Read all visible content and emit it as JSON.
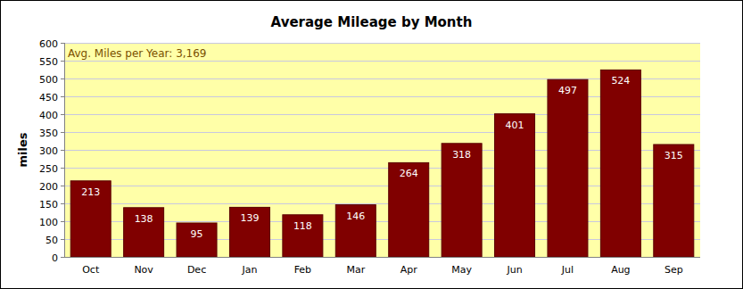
{
  "chart_data": {
    "type": "bar",
    "title": "Average Mileage by Month",
    "annotation": "Avg. Miles per Year: 3,169",
    "ylabel": "miles",
    "categories": [
      "Oct",
      "Nov",
      "Dec",
      "Jan",
      "Feb",
      "Mar",
      "Apr",
      "May",
      "Jun",
      "Jul",
      "Aug",
      "Sep"
    ],
    "values": [
      213,
      138,
      95,
      139,
      118,
      146,
      264,
      318,
      401,
      497,
      524,
      315
    ],
    "color": "#800000",
    "ylim": [
      0,
      600
    ],
    "yticks": [
      0,
      50,
      100,
      150,
      200,
      250,
      300,
      350,
      400,
      450,
      500,
      550,
      600
    ],
    "grid": true,
    "data_labels": true
  }
}
